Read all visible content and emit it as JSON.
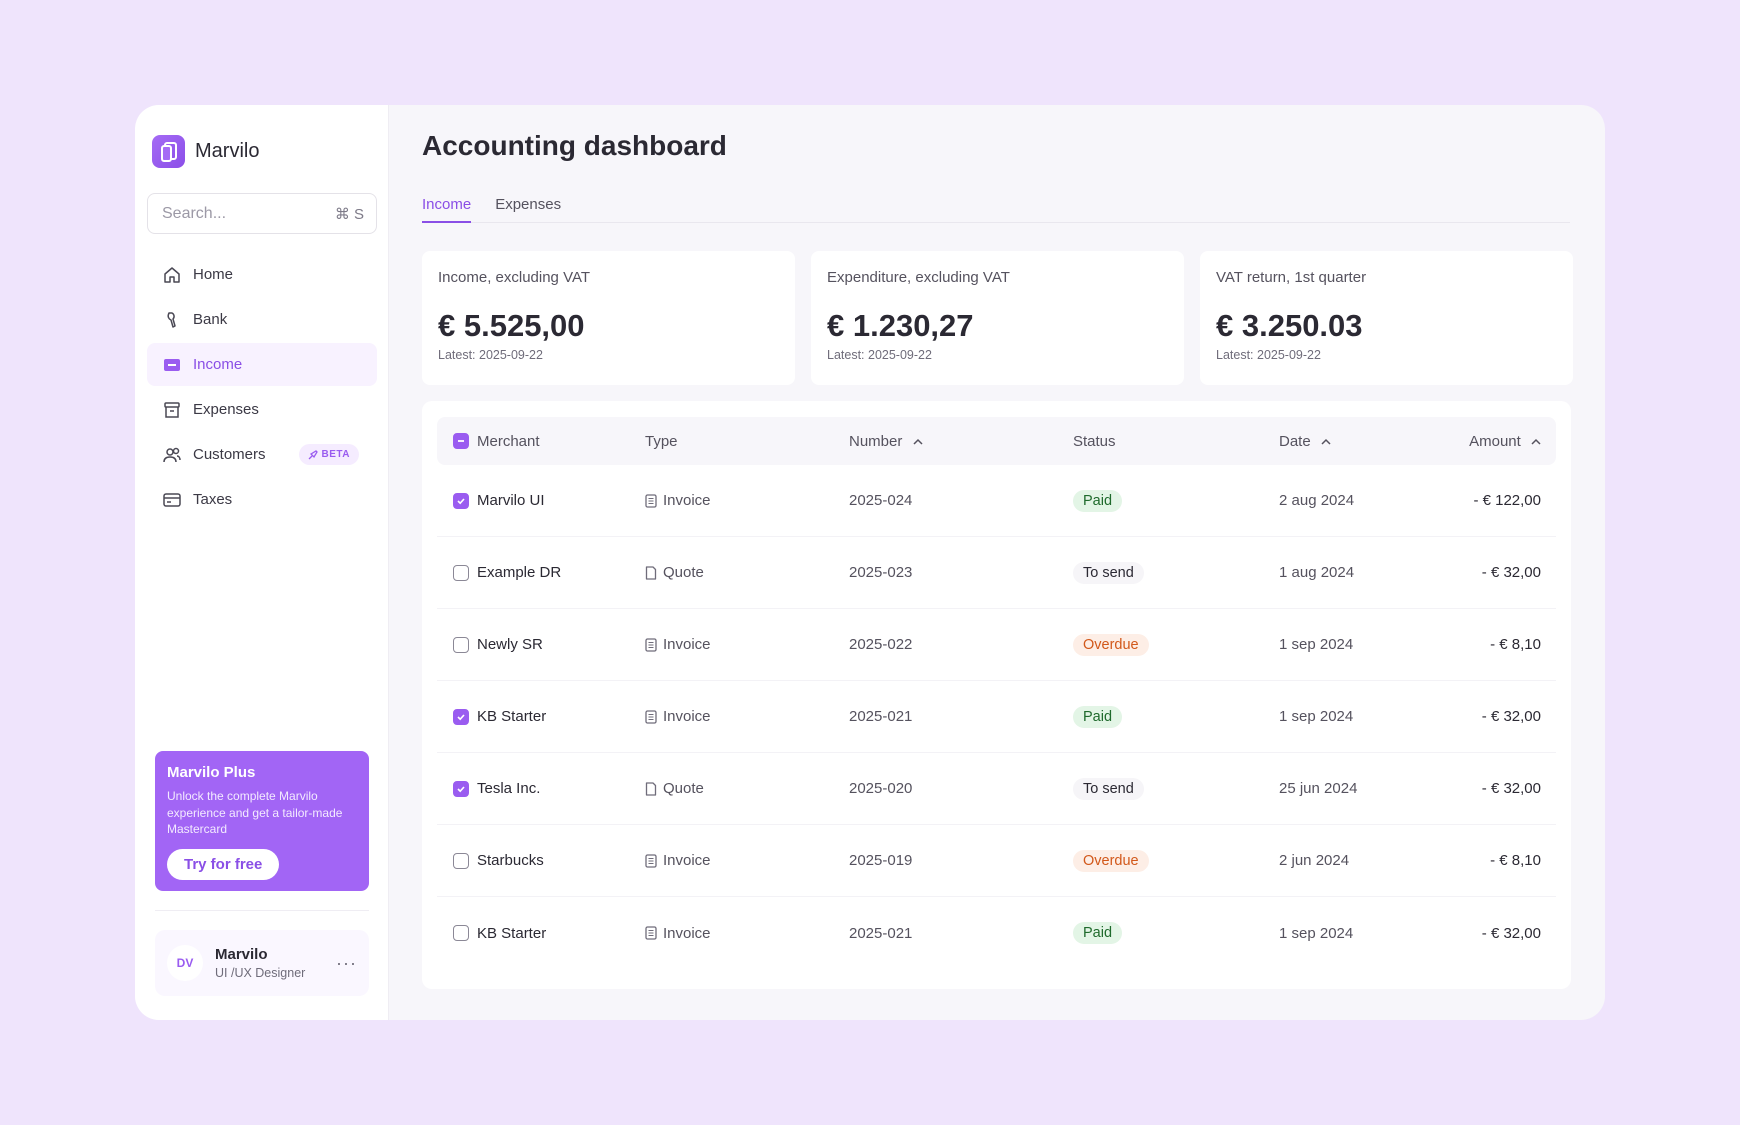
{
  "brand": {
    "name": "Marvilo"
  },
  "search": {
    "placeholder": "Search...",
    "shortcut": "⌘ S"
  },
  "sidebar": {
    "items": [
      {
        "label": "Home",
        "icon": "home-icon"
      },
      {
        "label": "Bank",
        "icon": "bank-icon"
      },
      {
        "label": "Income",
        "icon": "income-icon",
        "active": true
      },
      {
        "label": "Expenses",
        "icon": "expenses-icon"
      },
      {
        "label": "Customers",
        "icon": "customers-icon",
        "badge": "BETA"
      },
      {
        "label": "Taxes",
        "icon": "taxes-icon"
      }
    ]
  },
  "promo": {
    "title": "Marvilo Plus",
    "text": "Unlock the complete Marvilo experience and get a tailor-made Mastercard",
    "button": "Try for free"
  },
  "profile": {
    "initials": "DV",
    "name": "Marvilo",
    "role": "UI /UX Designer",
    "more": "···"
  },
  "page": {
    "title": "Accounting dashboard"
  },
  "tabs": [
    {
      "label": "Income",
      "active": true
    },
    {
      "label": "Expenses",
      "active": false
    }
  ],
  "cards": [
    {
      "label": "Income, excluding VAT",
      "value": "€ 5.525,00",
      "sub": "Latest: 2025-09-22"
    },
    {
      "label": "Expenditure, excluding VAT",
      "value": "€ 1.230,27",
      "sub": "Latest: 2025-09-22"
    },
    {
      "label": "VAT return, 1st quarter",
      "value": "€ 3.250.03",
      "sub": "Latest: 2025-09-22"
    }
  ],
  "table": {
    "headers": {
      "merchant": "Merchant",
      "type": "Type",
      "number": "Number",
      "status": "Status",
      "date": "Date",
      "amount": "Amount"
    },
    "rows": [
      {
        "checked": true,
        "merchant": "Marvilo UI",
        "type": "Invoice",
        "number": "2025-024",
        "status": "Paid",
        "status_kind": "paid",
        "date": "2 aug 2024",
        "amount": "- € 122,00"
      },
      {
        "checked": false,
        "merchant": "Example DR",
        "type": "Quote",
        "number": "2025-023",
        "status": "To send",
        "status_kind": "tosend",
        "date": "1 aug 2024",
        "amount": "- € 32,00"
      },
      {
        "checked": false,
        "merchant": "Newly SR",
        "type": "Invoice",
        "number": "2025-022",
        "status": "Overdue",
        "status_kind": "overdue",
        "date": "1 sep 2024",
        "amount": "- € 8,10"
      },
      {
        "checked": true,
        "merchant": "KB Starter",
        "type": "Invoice",
        "number": "2025-021",
        "status": "Paid",
        "status_kind": "paid",
        "date": "1 sep 2024",
        "amount": "- € 32,00"
      },
      {
        "checked": true,
        "merchant": "Tesla Inc.",
        "type": "Quote",
        "number": "2025-020",
        "status": "To send",
        "status_kind": "tosend",
        "date": "25 jun 2024",
        "amount": "- € 32,00"
      },
      {
        "checked": false,
        "merchant": "Starbucks",
        "type": "Invoice",
        "number": "2025-019",
        "status": "Overdue",
        "status_kind": "overdue",
        "date": "2 jun 2024",
        "amount": "- € 8,10"
      },
      {
        "checked": false,
        "merchant": "KB Starter",
        "type": "Invoice",
        "number": "2025-021",
        "status": "Paid",
        "status_kind": "paid",
        "date": "1 sep 2024",
        "amount": "- € 32,00"
      }
    ]
  },
  "colors": {
    "accent": "#9a5cf0",
    "background": "#efe4fc",
    "paid": "#1f6a2c",
    "overdue": "#d2581a"
  }
}
